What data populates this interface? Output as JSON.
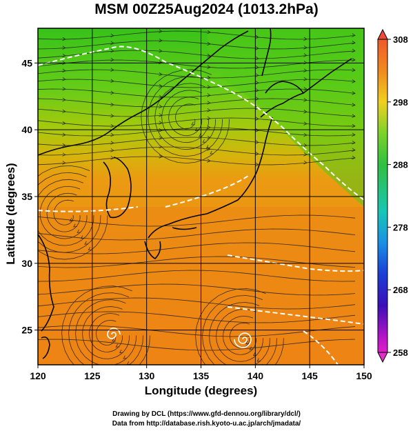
{
  "title": "MSM 00Z25Aug2024 (1013.2hPa)",
  "x_axis": {
    "label": "Longitude (degrees)",
    "ticks": [
      "120",
      "125",
      "130",
      "135",
      "140",
      "145",
      "150"
    ]
  },
  "y_axis": {
    "label": "Latitude  (degrees)",
    "ticks": [
      "25",
      "30",
      "35",
      "40",
      "45"
    ]
  },
  "colorbar": {
    "ticks": [
      "308",
      "298",
      "288",
      "278",
      "268",
      "258"
    ],
    "min": 258,
    "max": 308
  },
  "credits": {
    "line1": "Drawing by DCL (https://www.gfd-dennou.org/library/dcl/)",
    "line2": "Data from http://database.rish.kyoto-u.ac.jp/arch/jmadata/"
  },
  "map": {
    "lon_range": [
      120,
      150
    ],
    "lat_range": [
      22.4,
      47.6
    ],
    "grid_lon": [
      125,
      130,
      135,
      140,
      145
    ],
    "grid_lat": [
      25,
      30,
      35,
      40,
      45
    ],
    "colors": {
      "warm": "#ee8a14",
      "mid": "#d4c20c",
      "cool": "#6fd214",
      "cold": "#38c21a",
      "land": "#000000",
      "contour": "#ffffff"
    },
    "cyclone_centers": [
      {
        "name": "low-east",
        "lon": 138.8,
        "lat": 24.4
      },
      {
        "name": "low-west",
        "lon": 126.5,
        "lat": 24.6
      },
      {
        "name": "eddy-yellow-sea",
        "lon": 122.6,
        "lat": 33.6
      },
      {
        "name": "eddy-sea-of-japan",
        "lon": 133.8,
        "lat": 40.8
      }
    ]
  }
}
